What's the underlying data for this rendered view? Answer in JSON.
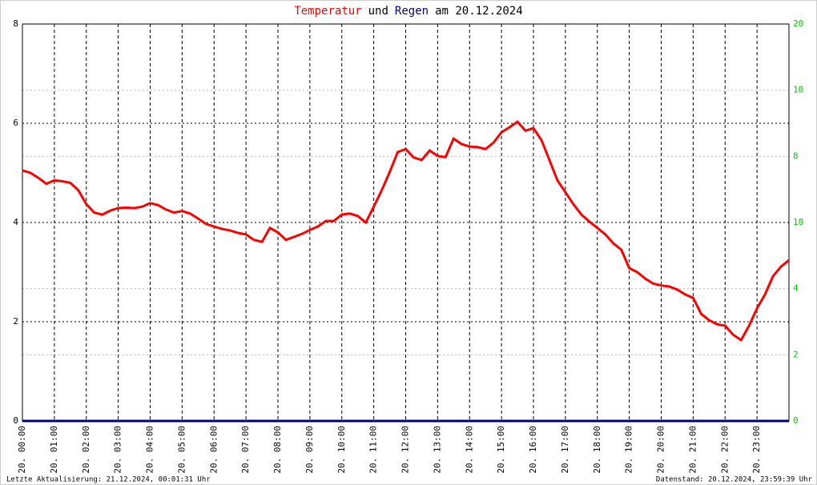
{
  "chart_data": {
    "type": "line",
    "title_parts": [
      {
        "text": "Temperatur",
        "color": "#ff0000"
      },
      {
        "text": "und",
        "color": "#000000"
      },
      {
        "text": "Regen",
        "color": "#000080"
      },
      {
        "text": "am 20.12.2024",
        "color": "#000000"
      }
    ],
    "xlim": [
      0,
      24
    ],
    "xticks": [
      {
        "value": 0,
        "label": "20. 00:00"
      },
      {
        "value": 1,
        "label": "20. 01:00"
      },
      {
        "value": 2,
        "label": "20. 02:00"
      },
      {
        "value": 3,
        "label": "20. 03:00"
      },
      {
        "value": 4,
        "label": "20. 04:00"
      },
      {
        "value": 5,
        "label": "20. 05:00"
      },
      {
        "value": 6,
        "label": "20. 06:00"
      },
      {
        "value": 7,
        "label": "20. 07:00"
      },
      {
        "value": 8,
        "label": "20. 08:00"
      },
      {
        "value": 9,
        "label": "20. 09:00"
      },
      {
        "value": 10,
        "label": "20. 10:00"
      },
      {
        "value": 11,
        "label": "20. 11:00"
      },
      {
        "value": 12,
        "label": "20. 12:00"
      },
      {
        "value": 13,
        "label": "20. 13:00"
      },
      {
        "value": 14,
        "label": "20. 14:00"
      },
      {
        "value": 15,
        "label": "20. 15:00"
      },
      {
        "value": 16,
        "label": "20. 16:00"
      },
      {
        "value": 17,
        "label": "20. 17:00"
      },
      {
        "value": 18,
        "label": "20. 18:00"
      },
      {
        "value": 19,
        "label": "20. 19:00"
      },
      {
        "value": 20,
        "label": "20. 20:00"
      },
      {
        "value": 21,
        "label": "20. 21:00"
      },
      {
        "value": 22,
        "label": "20. 22:00"
      },
      {
        "value": 23,
        "label": "20. 23:00"
      }
    ],
    "ylim": [
      0,
      8
    ],
    "yticks": [
      0,
      2,
      4,
      6,
      8
    ],
    "y2labels": [
      "0",
      "2",
      "4",
      "10",
      "8",
      "10",
      "20"
    ],
    "y2color": "#00cc00",
    "grid": true,
    "series": [
      {
        "color": "#ff0000",
        "x": [
          0,
          0.25,
          0.5,
          0.75,
          1,
          1.25,
          1.5,
          1.75,
          2,
          2.25,
          2.5,
          2.75,
          3,
          3.25,
          3.5,
          3.75,
          4,
          4.25,
          4.5,
          4.75,
          5,
          5.25,
          5.5,
          5.75,
          6,
          6.25,
          6.5,
          6.75,
          7,
          7.25,
          7.5,
          7.75,
          8,
          8.25,
          8.5,
          8.75,
          9,
          9.25,
          9.5,
          9.75,
          10,
          10.25,
          10.5,
          10.75,
          11,
          11.25,
          11.5,
          11.75,
          12,
          12.25,
          12.5,
          12.75,
          13,
          13.25,
          13.5,
          13.75,
          14,
          14.25,
          14.5,
          14.75,
          15,
          15.25,
          15.5,
          15.75,
          16,
          16.25,
          16.5,
          16.75,
          17,
          17.25,
          17.5,
          17.75,
          18,
          18.25,
          18.5,
          18.75,
          19,
          19.25,
          19.5,
          19.75,
          20,
          20.25,
          20.5,
          20.75,
          21,
          21.25,
          21.5,
          21.75,
          22,
          22.25,
          22.5,
          22.75,
          23,
          23.25,
          23.5,
          23.75,
          24
        ],
        "values": [
          5.05,
          5.0,
          4.9,
          4.78,
          4.85,
          4.83,
          4.8,
          4.65,
          4.37,
          4.2,
          4.16,
          4.24,
          4.29,
          4.3,
          4.29,
          4.32,
          4.39,
          4.35,
          4.26,
          4.2,
          4.23,
          4.18,
          4.08,
          3.97,
          3.92,
          3.87,
          3.84,
          3.79,
          3.76,
          3.65,
          3.61,
          3.89,
          3.8,
          3.65,
          3.71,
          3.77,
          3.85,
          3.92,
          4.03,
          4.03,
          4.16,
          4.18,
          4.13,
          4.0,
          4.32,
          4.65,
          5.02,
          5.42,
          5.48,
          5.31,
          5.26,
          5.45,
          5.34,
          5.32,
          5.69,
          5.58,
          5.53,
          5.52,
          5.48,
          5.61,
          5.82,
          5.92,
          6.03,
          5.85,
          5.9,
          5.66,
          5.26,
          4.85,
          4.61,
          4.37,
          4.16,
          4.02,
          3.89,
          3.76,
          3.58,
          3.45,
          3.08,
          3.0,
          2.87,
          2.77,
          2.73,
          2.71,
          2.65,
          2.55,
          2.48,
          2.16,
          2.03,
          1.95,
          1.92,
          1.74,
          1.63,
          1.92,
          2.27,
          2.55,
          2.92,
          3.11,
          3.24
        ]
      },
      {
        "color": "#000080",
        "x": [
          0,
          24
        ],
        "values": [
          0,
          0
        ]
      }
    ],
    "footer_left": "Letzte Aktualisierung: 21.12.2024, 00:01:31 Uhr",
    "footer_right": "Datenstand: 20.12.2024, 23:59:39 Uhr"
  }
}
